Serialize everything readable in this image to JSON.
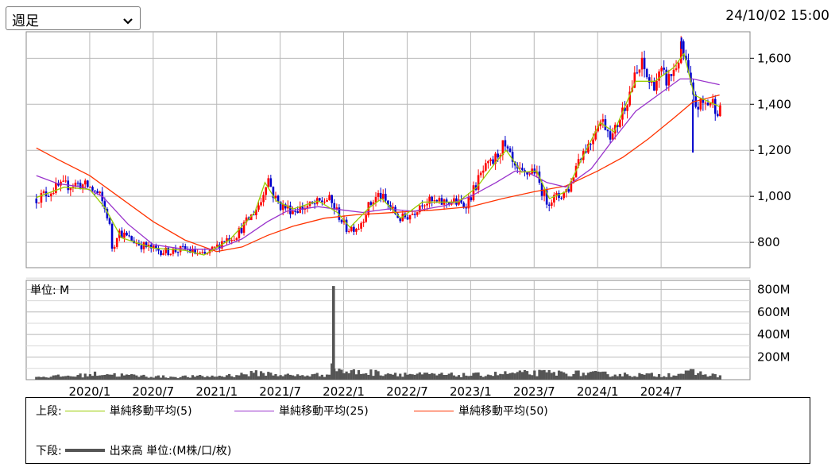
{
  "period_select": {
    "value": "週足"
  },
  "timestamp": "24/10/02 15:00",
  "colors": {
    "ma5": "#99cc00",
    "ma25": "#9933cc",
    "ma50": "#ff3300",
    "up": "#ff0000",
    "down": "#0000cc",
    "volume": "#555555",
    "grid": "#b8b8b8"
  },
  "legend": {
    "upper_label": "上段:",
    "lower_label": "下段:",
    "ma5_label": "単純移動平均(5)",
    "ma25_label": "単純移動平均(25)",
    "ma50_label": "単純移動平均(50)",
    "volume_label": "出来高 単位:(M株/口/枚)"
  },
  "chart_data": [
    {
      "type": "candlestick",
      "x_tick_labels": [
        "2020/1",
        "2020/7",
        "2021/1",
        "2021/7",
        "2022/1",
        "2022/7",
        "2023/1",
        "2023/7",
        "2024/1",
        "2024/7"
      ],
      "y_tick_labels": [
        "1,600",
        "1,400",
        "1,200",
        "1,000",
        "800"
      ],
      "ylim": [
        690,
        1715
      ],
      "price_path": [
        [
          2019.58,
          990
        ],
        [
          2019.75,
          1040
        ],
        [
          2019.9,
          1055
        ],
        [
          2020.0,
          1040
        ],
        [
          2020.08,
          1000
        ],
        [
          2020.15,
          900
        ],
        [
          2020.18,
          760
        ],
        [
          2020.22,
          850
        ],
        [
          2020.3,
          820
        ],
        [
          2020.4,
          790
        ],
        [
          2020.5,
          770
        ],
        [
          2020.6,
          760
        ],
        [
          2020.75,
          770
        ],
        [
          2020.9,
          740
        ],
        [
          2021.0,
          780
        ],
        [
          2021.05,
          810
        ],
        [
          2021.15,
          830
        ],
        [
          2021.28,
          920
        ],
        [
          2021.35,
          980
        ],
        [
          2021.4,
          1090
        ],
        [
          2021.45,
          1000
        ],
        [
          2021.5,
          960
        ],
        [
          2021.6,
          940
        ],
        [
          2021.75,
          960
        ],
        [
          2021.88,
          990
        ],
        [
          2021.95,
          930
        ],
        [
          2022.02,
          860
        ],
        [
          2022.12,
          870
        ],
        [
          2022.2,
          960
        ],
        [
          2022.28,
          1010
        ],
        [
          2022.35,
          960
        ],
        [
          2022.45,
          900
        ],
        [
          2022.55,
          930
        ],
        [
          2022.62,
          980
        ],
        [
          2022.75,
          970
        ],
        [
          2022.85,
          980
        ],
        [
          2022.95,
          960
        ],
        [
          2023.0,
          1000
        ],
        [
          2023.05,
          1060
        ],
        [
          2023.1,
          1110
        ],
        [
          2023.18,
          1150
        ],
        [
          2023.25,
          1220
        ],
        [
          2023.3,
          1180
        ],
        [
          2023.35,
          1110
        ],
        [
          2023.42,
          1090
        ],
        [
          2023.5,
          1120
        ],
        [
          2023.55,
          1040
        ],
        [
          2023.6,
          980
        ],
        [
          2023.7,
          1000
        ],
        [
          2023.78,
          1040
        ],
        [
          2023.85,
          1170
        ],
        [
          2023.95,
          1240
        ],
        [
          2024.0,
          1330
        ],
        [
          2024.05,
          1320
        ],
        [
          2024.12,
          1260
        ],
        [
          2024.2,
          1380
        ],
        [
          2024.3,
          1520
        ],
        [
          2024.35,
          1570
        ],
        [
          2024.42,
          1480
        ],
        [
          2024.5,
          1530
        ],
        [
          2024.55,
          1500
        ],
        [
          2024.62,
          1570
        ],
        [
          2024.66,
          1640
        ],
        [
          2024.7,
          1560
        ],
        [
          2024.75,
          1420
        ],
        [
          2024.78,
          1390
        ],
        [
          2024.82,
          1400
        ],
        [
          2024.9,
          1410
        ],
        [
          2024.96,
          1370
        ]
      ],
      "spikes": [
        [
          2024.75,
          1190
        ],
        [
          2024.66,
          1690
        ]
      ],
      "ma5": [
        [
          2019.58,
          995
        ],
        [
          2019.8,
          1040
        ],
        [
          2020.0,
          1030
        ],
        [
          2020.12,
          950
        ],
        [
          2020.25,
          820
        ],
        [
          2020.5,
          775
        ],
        [
          2020.75,
          765
        ],
        [
          2020.9,
          745
        ],
        [
          2021.1,
          810
        ],
        [
          2021.3,
          930
        ],
        [
          2021.38,
          1060
        ],
        [
          2021.47,
          980
        ],
        [
          2021.6,
          945
        ],
        [
          2021.8,
          980
        ],
        [
          2021.95,
          930
        ],
        [
          2022.05,
          865
        ],
        [
          2022.2,
          950
        ],
        [
          2022.3,
          990
        ],
        [
          2022.45,
          905
        ],
        [
          2022.62,
          975
        ],
        [
          2022.9,
          975
        ],
        [
          2023.05,
          1040
        ],
        [
          2023.2,
          1150
        ],
        [
          2023.28,
          1200
        ],
        [
          2023.4,
          1105
        ],
        [
          2023.52,
          1110
        ],
        [
          2023.62,
          990
        ],
        [
          2023.75,
          1020
        ],
        [
          2023.9,
          1190
        ],
        [
          2024.02,
          1320
        ],
        [
          2024.13,
          1280
        ],
        [
          2024.3,
          1500
        ],
        [
          2024.45,
          1500
        ],
        [
          2024.6,
          1560
        ],
        [
          2024.68,
          1620
        ],
        [
          2024.76,
          1440
        ],
        [
          2024.96,
          1390
        ]
      ],
      "ma25": [
        [
          2019.58,
          1090
        ],
        [
          2019.75,
          1055
        ],
        [
          2019.95,
          1040
        ],
        [
          2020.1,
          1000
        ],
        [
          2020.3,
          880
        ],
        [
          2020.5,
          790
        ],
        [
          2020.75,
          770
        ],
        [
          2021.0,
          770
        ],
        [
          2021.2,
          815
        ],
        [
          2021.4,
          890
        ],
        [
          2021.55,
          935
        ],
        [
          2021.8,
          955
        ],
        [
          2022.0,
          940
        ],
        [
          2022.15,
          930
        ],
        [
          2022.35,
          945
        ],
        [
          2022.55,
          935
        ],
        [
          2022.8,
          960
        ],
        [
          2023.0,
          1000
        ],
        [
          2023.2,
          1060
        ],
        [
          2023.35,
          1110
        ],
        [
          2023.45,
          1105
        ],
        [
          2023.6,
          1060
        ],
        [
          2023.75,
          1040
        ],
        [
          2023.95,
          1120
        ],
        [
          2024.1,
          1230
        ],
        [
          2024.3,
          1370
        ],
        [
          2024.5,
          1450
        ],
        [
          2024.65,
          1510
        ],
        [
          2024.75,
          1510
        ],
        [
          2024.96,
          1485
        ]
      ],
      "ma50": [
        [
          2019.58,
          1210
        ],
        [
          2019.75,
          1160
        ],
        [
          2020.0,
          1090
        ],
        [
          2020.25,
          990
        ],
        [
          2020.5,
          890
        ],
        [
          2020.75,
          810
        ],
        [
          2021.0,
          760
        ],
        [
          2021.2,
          780
        ],
        [
          2021.4,
          830
        ],
        [
          2021.6,
          870
        ],
        [
          2021.85,
          905
        ],
        [
          2022.1,
          920
        ],
        [
          2022.4,
          930
        ],
        [
          2022.7,
          940
        ],
        [
          2023.0,
          955
        ],
        [
          2023.25,
          990
        ],
        [
          2023.5,
          1020
        ],
        [
          2023.75,
          1045
        ],
        [
          2024.0,
          1110
        ],
        [
          2024.2,
          1170
        ],
        [
          2024.4,
          1250
        ],
        [
          2024.6,
          1340
        ],
        [
          2024.75,
          1410
        ],
        [
          2024.96,
          1440
        ]
      ]
    },
    {
      "type": "bar",
      "unit_label": "単位: M",
      "y_tick_labels": [
        "800M",
        "600M",
        "400M",
        "200M"
      ],
      "ylim": [
        0,
        880
      ],
      "volume_profile": [
        [
          2019.58,
          25
        ],
        [
          2019.9,
          35
        ],
        [
          2020.1,
          55
        ],
        [
          2020.25,
          40
        ],
        [
          2020.6,
          25
        ],
        [
          2021.0,
          30
        ],
        [
          2021.35,
          60
        ],
        [
          2021.6,
          35
        ],
        [
          2021.85,
          45
        ],
        [
          2021.93,
          120
        ],
        [
          2022.0,
          70
        ],
        [
          2022.3,
          60
        ],
        [
          2022.6,
          45
        ],
        [
          2023.0,
          40
        ],
        [
          2023.3,
          55
        ],
        [
          2023.6,
          60
        ],
        [
          2023.9,
          55
        ],
        [
          2024.2,
          45
        ],
        [
          2024.5,
          40
        ],
        [
          2024.75,
          65
        ],
        [
          2024.96,
          30
        ]
      ],
      "peak": [
        2021.92,
        830
      ]
    }
  ]
}
